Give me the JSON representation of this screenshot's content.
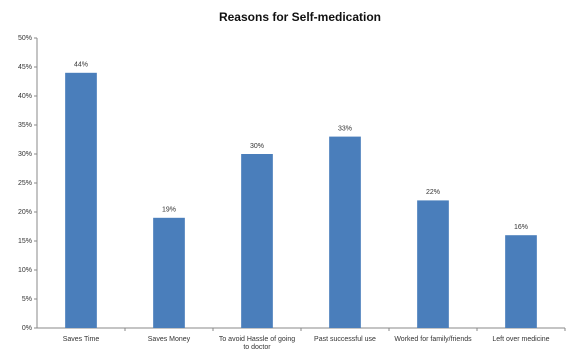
{
  "chart_data": {
    "type": "bar",
    "title": "Reasons for Self-medication",
    "categories": [
      "Saves Time",
      "Saves Money",
      "To avoid Hassle of going to doctor",
      "Past successful use",
      "Worked for family/friends",
      "Left over medicine"
    ],
    "values": [
      44,
      19,
      30,
      33,
      22,
      16
    ],
    "value_labels": [
      "44%",
      "19%",
      "30%",
      "33%",
      "22%",
      "16%"
    ],
    "color": "#4a7ebb",
    "ylim": [
      0,
      50
    ],
    "yticks": [
      {
        "value": 0,
        "label": "0%"
      },
      {
        "value": 5,
        "label": "5%"
      },
      {
        "value": 10,
        "label": "10%"
      },
      {
        "value": 15,
        "label": "15%"
      },
      {
        "value": 20,
        "label": "20%"
      },
      {
        "value": 25,
        "label": "25%"
      },
      {
        "value": 30,
        "label": "30%"
      },
      {
        "value": 35,
        "label": "35%"
      },
      {
        "value": 40,
        "label": "40%"
      },
      {
        "value": 45,
        "label": "45%"
      },
      {
        "value": 50,
        "label": "50%"
      }
    ],
    "grid": false
  }
}
